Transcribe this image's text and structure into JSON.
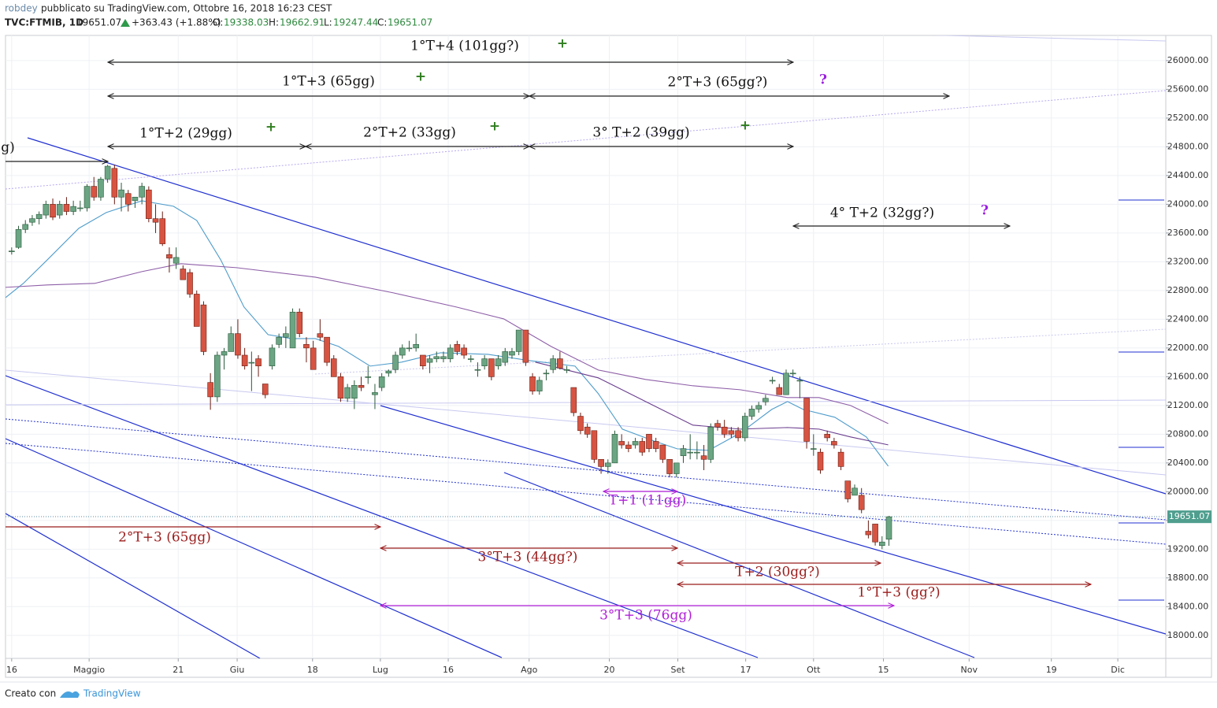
{
  "header": {
    "author": "robdey",
    "published": "pubblicato su TradingView.com, Ottobre 16, 2018 16:23 CEST",
    "symbol": "TVC:FTMIB, 1D",
    "price": "19651.07",
    "change": "+363.43 (+1.88%)",
    "o_label": "O:",
    "o": "19338.03",
    "h_label": "H:",
    "h": "19662.91",
    "l_label": "L:",
    "l": "19247.44",
    "c_label": "C:",
    "c": "19651.07"
  },
  "footer": {
    "text": "Creato con",
    "brand": "TradingView"
  },
  "chart_data": {
    "type": "candlestick",
    "up_color": "#6ba583",
    "down_color": "#d75442",
    "grid": true,
    "xlim": [
      -0.9,
      168.4
    ],
    "xticks": [
      {
        "value": 0,
        "label": "16"
      },
      {
        "value": 11.3,
        "label": "Maggio"
      },
      {
        "value": 24.3,
        "label": "21"
      },
      {
        "value": 32.9,
        "label": "Giu"
      },
      {
        "value": 43.9,
        "label": "18"
      },
      {
        "value": 53.8,
        "label": "Lug"
      },
      {
        "value": 63.7,
        "label": "16"
      },
      {
        "value": 75.5,
        "label": "Ago"
      },
      {
        "value": 87.2,
        "label": "20"
      },
      {
        "value": 97.2,
        "label": "Set"
      },
      {
        "value": 107.1,
        "label": "17"
      },
      {
        "value": 117,
        "label": "Ott"
      },
      {
        "value": 127.2,
        "label": "15"
      },
      {
        "value": 139.7,
        "label": "Nov"
      },
      {
        "value": 151.7,
        "label": "19"
      },
      {
        "value": 161.4,
        "label": "Dic"
      }
    ],
    "ylim": [
      17680,
      26350
    ],
    "yticks": [
      {
        "value": 18000,
        "label": "18000.00"
      },
      {
        "value": 18400,
        "label": "18400.00"
      },
      {
        "value": 18800,
        "label": "18800.00"
      },
      {
        "value": 19200,
        "label": "19200.00"
      },
      {
        "value": 19600,
        "label": "19600.00"
      },
      {
        "value": 20000,
        "label": "20000.00"
      },
      {
        "value": 20400,
        "label": "20400.00"
      },
      {
        "value": 20800,
        "label": "20800.00"
      },
      {
        "value": 21200,
        "label": "21200.00"
      },
      {
        "value": 21600,
        "label": "21600.00"
      },
      {
        "value": 22000,
        "label": "22000.00"
      },
      {
        "value": 22400,
        "label": "22400.00"
      },
      {
        "value": 22800,
        "label": "22800.00"
      },
      {
        "value": 23200,
        "label": "23200.00"
      },
      {
        "value": 23600,
        "label": "23600.00"
      },
      {
        "value": 24000,
        "label": "24000.00"
      },
      {
        "value": 24400,
        "label": "24400.00"
      },
      {
        "value": 24800,
        "label": "24800.00"
      },
      {
        "value": 25200,
        "label": "25200.00"
      },
      {
        "value": 25600,
        "label": "25600.00"
      },
      {
        "value": 26000,
        "label": "26000.00"
      }
    ],
    "last_price": 19651.07,
    "ohlc": [
      [
        23350,
        23400,
        23300,
        23350
      ],
      [
        23400,
        23700,
        23380,
        23650
      ],
      [
        23650,
        23780,
        23600,
        23720
      ],
      [
        23750,
        23850,
        23700,
        23800
      ],
      [
        23800,
        23900,
        23720,
        23860
      ],
      [
        23850,
        24050,
        23800,
        24000
      ],
      [
        24000,
        24080,
        23780,
        23820
      ],
      [
        23850,
        24050,
        23800,
        24000
      ],
      [
        24000,
        24100,
        23850,
        23900
      ],
      [
        23900,
        24050,
        23850,
        23970
      ],
      [
        23950,
        24050,
        23900,
        23950
      ],
      [
        23950,
        24280,
        23900,
        24250
      ],
      [
        24250,
        24380,
        24050,
        24100
      ],
      [
        24100,
        24380,
        24050,
        24350
      ],
      [
        24350,
        24550,
        24300,
        24530
      ],
      [
        24500,
        24550,
        24000,
        24100
      ],
      [
        24100,
        24300,
        23900,
        24200
      ],
      [
        24150,
        24200,
        23900,
        24000
      ],
      [
        24050,
        24100,
        23950,
        24100
      ],
      [
        24100,
        24300,
        24000,
        24250
      ],
      [
        24200,
        24250,
        23750,
        23800
      ],
      [
        23800,
        24000,
        23600,
        23750
      ],
      [
        23800,
        23900,
        23420,
        23450
      ],
      [
        23300,
        23400,
        23050,
        23250
      ],
      [
        23180,
        23400,
        23100,
        23260
      ],
      [
        23100,
        23150,
        22950,
        22950
      ],
      [
        23050,
        23100,
        22700,
        22750
      ],
      [
        22750,
        22800,
        22300,
        22300
      ],
      [
        22600,
        22650,
        21900,
        21950
      ],
      [
        21520,
        21650,
        21140,
        21320
      ],
      [
        21320,
        21950,
        21250,
        21900
      ],
      [
        21900,
        22000,
        21700,
        21950
      ],
      [
        21950,
        22300,
        21950,
        22200
      ],
      [
        22200,
        22400,
        21850,
        21900
      ],
      [
        21900,
        22000,
        21700,
        21750
      ],
      [
        21800,
        21950,
        21400,
        21800
      ],
      [
        21850,
        21900,
        21600,
        21750
      ],
      [
        21500,
        21500,
        21300,
        21350
      ],
      [
        21750,
        22050,
        21700,
        22000
      ],
      [
        22050,
        22200,
        22000,
        22150
      ],
      [
        22150,
        22300,
        22000,
        22200
      ],
      [
        22000,
        22550,
        22000,
        22500
      ],
      [
        22500,
        22550,
        22150,
        22200
      ],
      [
        22050,
        22150,
        21800,
        22000
      ],
      [
        22000,
        22100,
        21700,
        21700
      ],
      [
        22200,
        22400,
        22100,
        22150
      ],
      [
        22150,
        22150,
        21750,
        21800
      ],
      [
        21850,
        21900,
        21600,
        21600
      ],
      [
        21600,
        21650,
        21250,
        21300
      ],
      [
        21300,
        21500,
        21250,
        21450
      ],
      [
        21300,
        21550,
        21150,
        21480
      ],
      [
        21480,
        21600,
        21400,
        21450
      ],
      [
        21600,
        21750,
        21500,
        21600
      ],
      [
        21350,
        21500,
        21150,
        21380
      ],
      [
        21450,
        21650,
        21400,
        21600
      ],
      [
        21650,
        21700,
        21600,
        21680
      ],
      [
        21700,
        21950,
        21650,
        21900
      ],
      [
        21900,
        22050,
        21850,
        22000
      ],
      [
        22000,
        22100,
        21950,
        22000
      ],
      [
        22000,
        22200,
        21950,
        22050
      ],
      [
        21900,
        21900,
        21700,
        21750
      ],
      [
        21800,
        21900,
        21650,
        21850
      ],
      [
        21850,
        21950,
        21800,
        21880
      ],
      [
        21850,
        21950,
        21800,
        21880
      ],
      [
        21850,
        22050,
        21800,
        22000
      ],
      [
        22050,
        22100,
        21900,
        21950
      ],
      [
        22000,
        22050,
        21850,
        21900
      ],
      [
        21850,
        21900,
        21800,
        21850
      ],
      [
        21700,
        21800,
        21600,
        21700
      ],
      [
        21750,
        21900,
        21700,
        21850
      ],
      [
        21850,
        21850,
        21550,
        21600
      ],
      [
        21750,
        21900,
        21700,
        21850
      ],
      [
        21800,
        22000,
        21750,
        21950
      ],
      [
        21900,
        22000,
        21850,
        21950
      ],
      [
        21950,
        22250,
        21900,
        22250
      ],
      [
        22250,
        22250,
        21750,
        21800
      ],
      [
        21600,
        21650,
        21350,
        21400
      ],
      [
        21400,
        21600,
        21350,
        21550
      ],
      [
        21650,
        21700,
        21550,
        21650
      ],
      [
        21700,
        21900,
        21650,
        21850
      ],
      [
        21850,
        21950,
        21700,
        21720
      ],
      [
        21700,
        21750,
        21650,
        21700
      ],
      [
        21450,
        21450,
        21050,
        21100
      ],
      [
        21050,
        21100,
        20800,
        20850
      ],
      [
        20900,
        20950,
        20750,
        20800
      ],
      [
        20850,
        20850,
        20400,
        20450
      ],
      [
        20450,
        20450,
        20250,
        20350
      ],
      [
        20350,
        20450,
        20250,
        20400
      ],
      [
        20400,
        20850,
        20400,
        20800
      ],
      [
        20700,
        20800,
        20600,
        20650
      ],
      [
        20650,
        20700,
        20550,
        20600
      ],
      [
        20650,
        20750,
        20600,
        20700
      ],
      [
        20700,
        20750,
        20500,
        20550
      ],
      [
        20800,
        20800,
        20550,
        20600
      ],
      [
        20700,
        20750,
        20550,
        20600
      ],
      [
        20650,
        20650,
        20400,
        20450
      ],
      [
        20450,
        20450,
        20200,
        20250
      ],
      [
        20250,
        20400,
        20200,
        20400
      ],
      [
        20500,
        20650,
        20400,
        20600
      ],
      [
        20550,
        20800,
        20450,
        20550
      ],
      [
        20550,
        20700,
        20450,
        20550
      ],
      [
        20500,
        20650,
        20300,
        20450
      ],
      [
        20450,
        20950,
        20400,
        20900
      ],
      [
        20950,
        21000,
        20850,
        20900
      ],
      [
        20900,
        21000,
        20750,
        20800
      ],
      [
        20850,
        20900,
        20750,
        20800
      ],
      [
        20850,
        20900,
        20700,
        20750
      ],
      [
        20750,
        21100,
        20700,
        21050
      ],
      [
        21050,
        21200,
        21000,
        21150
      ],
      [
        21150,
        21250,
        21100,
        21200
      ],
      [
        21250,
        21350,
        21200,
        21300
      ],
      [
        21550,
        21600,
        21500,
        21550
      ],
      [
        21450,
        21500,
        21350,
        21350
      ],
      [
        21350,
        21700,
        21350,
        21650
      ],
      [
        21650,
        21700,
        21600,
        21650
      ],
      [
        21550,
        21600,
        21300,
        21550
      ],
      [
        21300,
        21300,
        20600,
        20700
      ],
      [
        20600,
        20800,
        20500,
        20600
      ],
      [
        20550,
        20600,
        20250,
        20300
      ],
      [
        20800,
        20850,
        20700,
        20750
      ],
      [
        20700,
        20750,
        20600,
        20650
      ],
      [
        20550,
        20600,
        20300,
        20350
      ],
      [
        20150,
        20150,
        19850,
        19900
      ],
      [
        19950,
        20100,
        19950,
        20050
      ],
      [
        19950,
        20050,
        19700,
        19750
      ],
      [
        19450,
        19600,
        19350,
        19400
      ],
      [
        19550,
        19550,
        19250,
        19300
      ],
      [
        19250,
        19380,
        19200,
        19300
      ],
      [
        19338,
        19663,
        19247,
        19651
      ]
    ],
    "indicators": [
      {
        "color": "#4f9ccb",
        "x": [
          -0.9,
          1.7,
          5.2,
          9.8,
          13.8,
          19,
          23.6,
          27,
          30.5,
          33.9,
          37.4,
          40.8,
          44.3,
          47.7,
          52.3,
          56.9,
          62.6,
          69.5,
          75.5,
          82.2,
          85.6,
          89.1,
          93.7,
          97.1,
          101.7,
          106.3,
          110.9,
          113.2,
          115.5,
          120.1,
          124.7,
          127.9
        ],
        "values": [
          22701,
          22899,
          23227,
          23666,
          23885,
          24049,
          23973,
          23775,
          23227,
          22570,
          22186,
          22131,
          22131,
          22022,
          21748,
          21803,
          21934,
          21912,
          21825,
          21748,
          21364,
          20871,
          20707,
          20597,
          20575,
          20816,
          21145,
          21255,
          21145,
          21036,
          20762,
          20356
        ]
      },
      {
        "color": "#8e5fa8",
        "x": [
          -0.9,
          5.2,
          12.1,
          19,
          24.7,
          32.8,
          44.3,
          55.7,
          64.9,
          71.8,
          78.7,
          85.6,
          92.5,
          99.4,
          106.3,
          113.2,
          117.8,
          122.4,
          127.9
        ],
        "values": [
          22844,
          22877,
          22899,
          23063,
          23173,
          23118,
          22986,
          22767,
          22570,
          22405,
          22022,
          21693,
          21562,
          21474,
          21419,
          21310,
          21310,
          21200,
          20948
        ]
      },
      {
        "color": "#6b3e8e",
        "x": [
          76.4,
          85.6,
          92.5,
          99.4,
          106.3,
          113.2,
          117.8,
          122.4,
          127.9
        ],
        "values": [
          21803,
          21584,
          21255,
          20926,
          20871,
          20893,
          20871,
          20762,
          20652
        ]
      }
    ],
    "annotations": [
      {
        "text": "1°T+4 (101gg?)",
        "color": "#111111"
      },
      {
        "text": "1°T+3 (65gg)",
        "color": "#111111"
      },
      {
        "text": "2°T+3 (65gg?)",
        "color": "#111111"
      },
      {
        "text": "1°T+2 (29gg)",
        "color": "#111111"
      },
      {
        "text": "2°T+2 (33gg)",
        "color": "#111111"
      },
      {
        "text": "3° T+2 (39gg)",
        "color": "#111111"
      },
      {
        "text": "4° T+2 (32gg?)",
        "color": "#111111"
      },
      {
        "text": "g)",
        "color": "#111111"
      },
      {
        "text": "2°T+3 (65gg)",
        "color": "#9b1c1c"
      },
      {
        "text": "3°T+3 (44gg?)",
        "color": "#9b1c1c"
      },
      {
        "text": "T+2 (30gg?)",
        "color": "#9b1c1c"
      },
      {
        "text": "1°T+3 (gg?)",
        "color": "#9b1c1c"
      },
      {
        "text": "T+1 (11gg)",
        "color": "#b01fd8"
      },
      {
        "text": "3°T+3 (76gg)",
        "color": "#b01fd8"
      },
      {
        "text": "+",
        "color": "#2e7d1e"
      },
      {
        "text": "+",
        "color": "#2e7d1e"
      },
      {
        "text": "+",
        "color": "#2e7d1e"
      },
      {
        "text": "+",
        "color": "#2e7d1e"
      },
      {
        "text": "+",
        "color": "#2e7d1e"
      },
      {
        "text": "?",
        "color": "#9b1fe0"
      },
      {
        "text": "?",
        "color": "#9b1fe0"
      }
    ]
  }
}
